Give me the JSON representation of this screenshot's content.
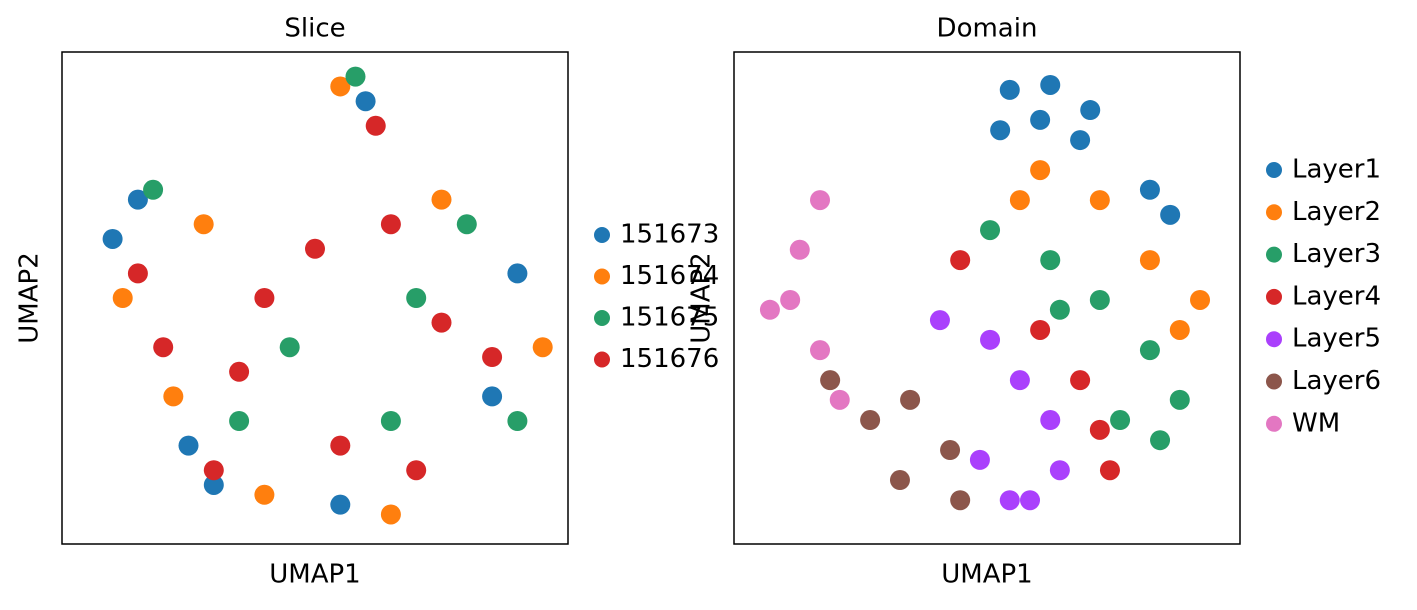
{
  "chart_data": [
    {
      "type": "scatter",
      "title": "Slice",
      "x_label": "UMAP1",
      "y_label": "UMAP2",
      "xlim": [
        0,
        10
      ],
      "ylim": [
        0,
        10
      ],
      "legend": "right",
      "series": [
        {
          "name": "151673",
          "color": "#1f77b4",
          "x": [
            1.0,
            1.5,
            3.0,
            6.0,
            9.0,
            5.5,
            2.5,
            8.5
          ],
          "values": [
            6.2,
            7.0,
            1.2,
            9.0,
            5.5,
            0.8,
            2.0,
            3.0
          ]
        },
        {
          "name": "151674",
          "color": "#ff7f0e",
          "x": [
            1.2,
            2.8,
            5.5,
            9.5,
            6.5,
            4.0,
            7.5,
            2.2
          ],
          "values": [
            5.0,
            6.5,
            9.3,
            4.0,
            0.6,
            1.0,
            7.0,
            3.0
          ]
        },
        {
          "name": "151675",
          "color": "#279e68",
          "x": [
            1.8,
            5.8,
            8.0,
            4.5,
            6.5,
            3.5,
            9.0,
            7.0
          ],
          "values": [
            7.2,
            9.5,
            6.5,
            4.0,
            2.5,
            2.5,
            2.5,
            5.0
          ]
        },
        {
          "name": "151676",
          "color": "#d62728",
          "x": [
            1.5,
            2.0,
            3.5,
            5.0,
            6.2,
            7.5,
            8.5,
            5.5,
            4.0,
            6.5,
            3.0,
            7.0
          ],
          "values": [
            5.5,
            4.0,
            3.5,
            6.0,
            8.5,
            4.5,
            3.8,
            2.0,
            5.0,
            6.5,
            1.5,
            1.5
          ]
        }
      ]
    },
    {
      "type": "scatter",
      "title": "Domain",
      "x_label": "UMAP1",
      "y_label": "UMAP2",
      "xlim": [
        0,
        10
      ],
      "ylim": [
        0,
        10
      ],
      "legend": "right",
      "series": [
        {
          "name": "Layer1",
          "color": "#1f77b4",
          "x": [
            5.45,
            6.25,
            7.04,
            5.26,
            6.05,
            6.84,
            8.22,
            8.62
          ],
          "values": [
            9.23,
            9.33,
            8.82,
            8.41,
            8.62,
            8.21,
            7.2,
            6.69
          ]
        },
        {
          "name": "Layer2",
          "color": "#ff7f0e",
          "x": [
            6.05,
            7.23,
            8.22,
            9.21,
            8.81,
            5.65
          ],
          "values": [
            7.6,
            6.99,
            5.77,
            4.96,
            4.35,
            6.99
          ]
        },
        {
          "name": "Layer3",
          "color": "#279e68",
          "x": [
            5.06,
            6.25,
            7.23,
            8.22,
            8.81,
            8.42,
            7.63,
            6.44
          ],
          "values": [
            6.38,
            5.77,
            4.96,
            3.94,
            2.93,
            2.11,
            2.52,
            4.76
          ]
        },
        {
          "name": "Layer4",
          "color": "#d62728",
          "x": [
            4.47,
            6.05,
            6.84,
            7.23,
            7.43
          ],
          "values": [
            5.77,
            4.35,
            3.33,
            2.32,
            1.5
          ]
        },
        {
          "name": "Layer5",
          "color": "#aa40fc",
          "x": [
            4.07,
            5.06,
            5.65,
            6.25,
            6.44,
            5.45,
            4.86,
            5.85
          ],
          "values": [
            4.55,
            4.15,
            3.33,
            2.52,
            1.5,
            0.89,
            1.71,
            0.89
          ]
        },
        {
          "name": "Layer6",
          "color": "#8c564b",
          "x": [
            1.9,
            2.69,
            3.48,
            4.27,
            3.28,
            4.47
          ],
          "values": [
            3.33,
            2.52,
            2.93,
            1.91,
            1.3,
            0.89
          ]
        },
        {
          "name": "WM",
          "color": "#e377c2",
          "x": [
            1.7,
            1.3,
            1.11,
            1.7,
            2.09,
            0.71
          ],
          "values": [
            6.99,
            5.98,
            4.96,
            3.94,
            2.93,
            4.76
          ]
        }
      ]
    }
  ]
}
